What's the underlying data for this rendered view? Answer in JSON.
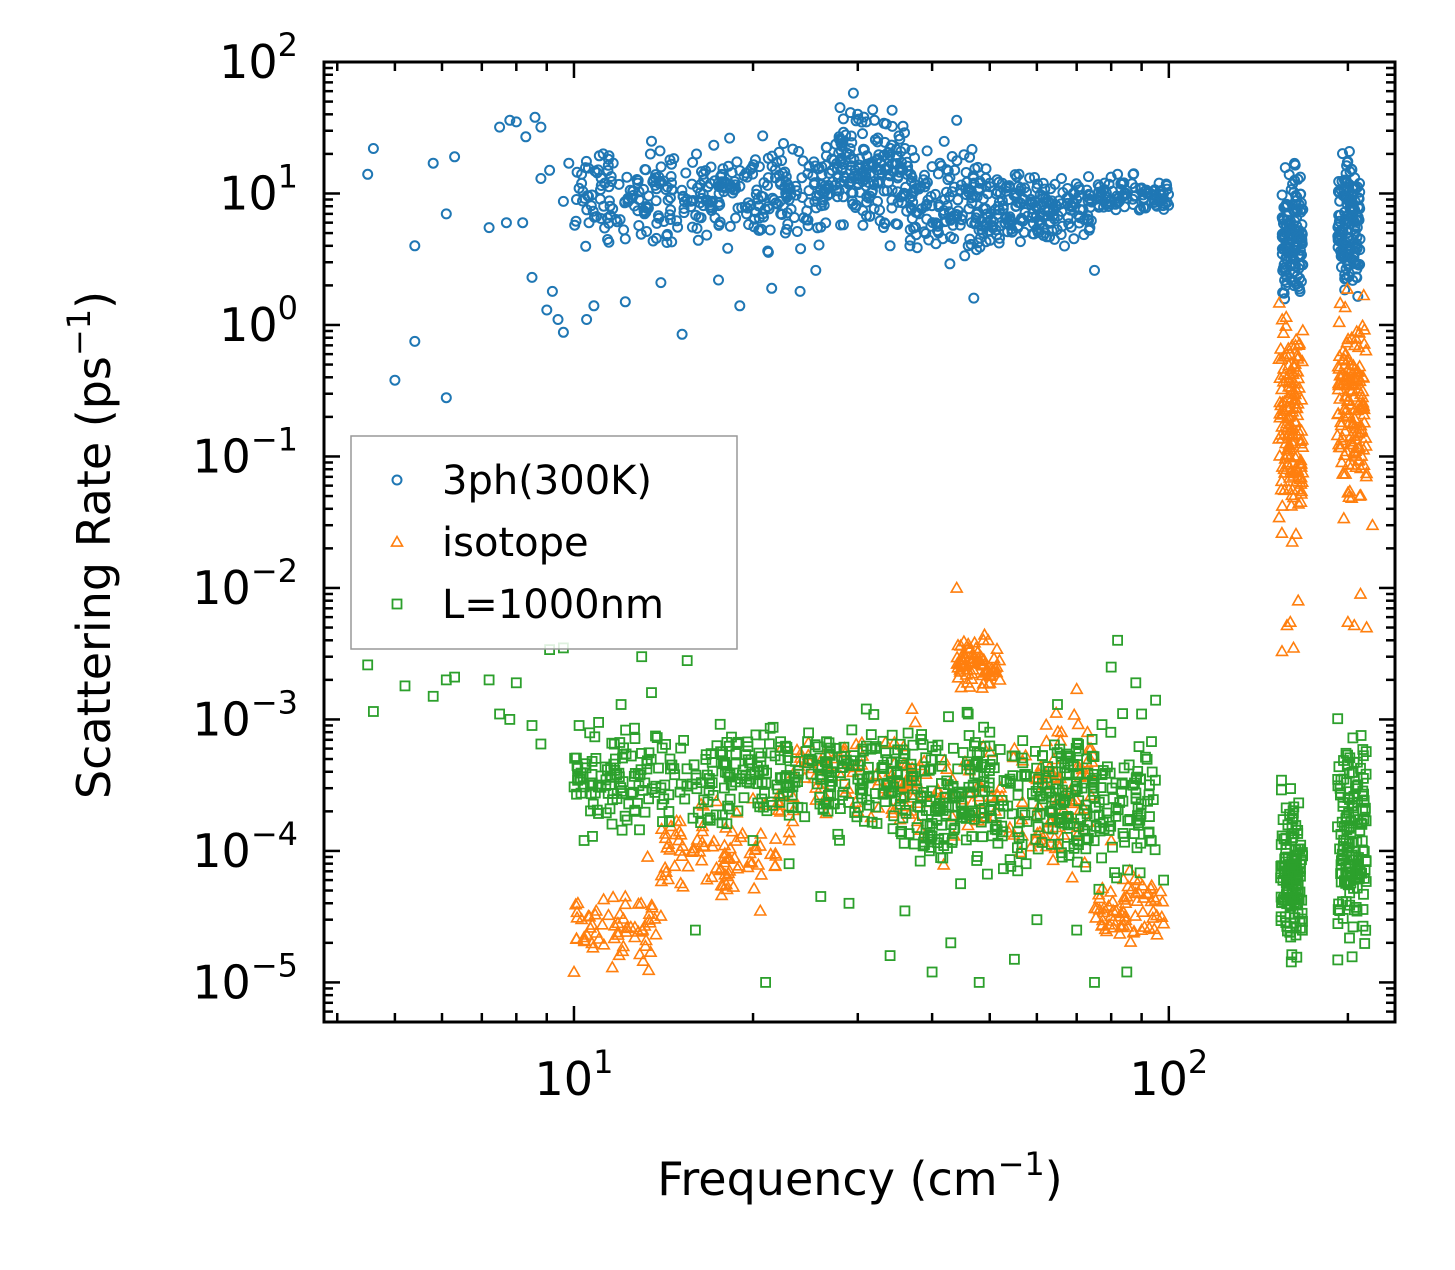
{
  "chart_data": {
    "type": "scatter",
    "title": "",
    "xlabel": "Frequency (cm⁻¹)",
    "xlabel_text": "Frequency (cm",
    "xlabel_sup": "−1",
    "xlabel_close": ")",
    "ylabel": "Scattering Rate (ps⁻¹)",
    "ylabel_text": "Scattering Rate (ps",
    "ylabel_sup": "−1",
    "ylabel_close": ")",
    "xscale": "log",
    "yscale": "log",
    "xlim": [
      3.8,
      240
    ],
    "ylim": [
      5e-06,
      100
    ],
    "legend_position": "center-left",
    "x_ticks": [
      {
        "value": 10,
        "base": "10",
        "exp": "1"
      },
      {
        "value": 100,
        "base": "10",
        "exp": "2"
      }
    ],
    "y_ticks": [
      {
        "value": 100,
        "base": "10",
        "exp": "2"
      },
      {
        "value": 10,
        "base": "10",
        "exp": "1"
      },
      {
        "value": 1,
        "base": "10",
        "exp": "0"
      },
      {
        "value": 0.1,
        "base": "10",
        "exp": "−1"
      },
      {
        "value": 0.01,
        "base": "10",
        "exp": "−2"
      },
      {
        "value": 0.001,
        "base": "10",
        "exp": "−3"
      },
      {
        "value": 0.0001,
        "base": "10",
        "exp": "−4"
      },
      {
        "value": 1e-05,
        "base": "10",
        "exp": "−5"
      }
    ],
    "series": [
      {
        "name": "3ph(300K)",
        "marker": "circle",
        "color": "#1f77b4",
        "points": [
          [
            4.5,
            14
          ],
          [
            4.6,
            22
          ],
          [
            5.0,
            0.38
          ],
          [
            5.4,
            4.0
          ],
          [
            5.4,
            0.75
          ],
          [
            5.8,
            17
          ],
          [
            6.1,
            7
          ],
          [
            6.1,
            0.28
          ],
          [
            6.3,
            19
          ],
          [
            7.2,
            5.5
          ],
          [
            7.5,
            32
          ],
          [
            7.7,
            6
          ],
          [
            7.8,
            36
          ],
          [
            8.0,
            35
          ],
          [
            8.2,
            6
          ],
          [
            8.3,
            27
          ],
          [
            8.5,
            2.3
          ],
          [
            8.6,
            38
          ],
          [
            8.8,
            13
          ],
          [
            8.8,
            32
          ],
          [
            9.0,
            1.3
          ],
          [
            9.1,
            15
          ],
          [
            9.2,
            1.8
          ],
          [
            9.4,
            1.1
          ],
          [
            9.6,
            8.7
          ],
          [
            9.6,
            0.88
          ],
          [
            9.8,
            17
          ],
          [
            10.1,
            9
          ],
          [
            10.3,
            14
          ],
          [
            10.5,
            1.1
          ],
          [
            10.6,
            6
          ],
          [
            10.8,
            1.4
          ],
          [
            11.2,
            20
          ],
          [
            11.5,
            8
          ],
          [
            12.2,
            1.5
          ],
          [
            12.8,
            12
          ],
          [
            13.5,
            25
          ],
          [
            14.0,
            2.1
          ],
          [
            14.5,
            18
          ],
          [
            15.2,
            0.85
          ],
          [
            15.5,
            9
          ],
          [
            16.5,
            14
          ],
          [
            17.5,
            2.2
          ],
          [
            18.0,
            11
          ],
          [
            19.0,
            1.4
          ],
          [
            19.5,
            7
          ],
          [
            20.5,
            16
          ],
          [
            21.5,
            1.9
          ],
          [
            22.5,
            24
          ],
          [
            24.0,
            1.8
          ],
          [
            25.5,
            2.6
          ],
          [
            27,
            10
          ],
          [
            28,
            45
          ],
          [
            29.5,
            58
          ],
          [
            31,
            35
          ],
          [
            32.5,
            12
          ],
          [
            34,
            4
          ],
          [
            36,
            22
          ],
          [
            38,
            7
          ],
          [
            40,
            16
          ],
          [
            42,
            9
          ],
          [
            44,
            36
          ],
          [
            46,
            4
          ],
          [
            47,
            1.6
          ],
          [
            50,
            12
          ],
          [
            53,
            6
          ],
          [
            56,
            14
          ],
          [
            60,
            11
          ],
          [
            62,
            5
          ],
          [
            66,
            13
          ],
          [
            70,
            9
          ],
          [
            75,
            2.6
          ],
          [
            78,
            12
          ],
          [
            82,
            14
          ],
          [
            90,
            11
          ],
          [
            98,
            10
          ]
        ],
        "clusters": [
          {
            "x": [
              10,
              16
            ],
            "y": [
              3,
              28
            ],
            "n": 140
          },
          {
            "x": [
              16,
              27
            ],
            "y": [
              3,
              35
            ],
            "n": 200
          },
          {
            "x": [
              27,
              36
            ],
            "y": [
              4,
              58
            ],
            "n": 180
          },
          {
            "x": [
              36,
              50
            ],
            "y": [
              2,
              30
            ],
            "n": 160
          },
          {
            "x": [
              50,
              75
            ],
            "y": [
              3,
              18
            ],
            "n": 180
          },
          {
            "x": [
              75,
              100
            ],
            "y": [
              6,
              15
            ],
            "n": 90
          },
          {
            "x": [
              155,
              168
            ],
            "y": [
              1,
              25
            ],
            "n": 140
          },
          {
            "x": [
              192,
              210
            ],
            "y": [
              1,
              33
            ],
            "n": 150
          }
        ]
      },
      {
        "name": "isotope",
        "marker": "triangle",
        "color": "#ff7f0e",
        "points": [
          [
            10.0,
            1.2e-05
          ],
          [
            10.4,
            2.2e-05
          ],
          [
            10.9,
            3.5e-05
          ],
          [
            11.6,
            1.3e-05
          ],
          [
            12.2,
            4.5e-05
          ],
          [
            13.3,
            9e-05
          ],
          [
            14.0,
            3.2e-05
          ],
          [
            15.0,
            0.00012
          ],
          [
            16.5,
            0.00022
          ],
          [
            18.0,
            0.00015
          ],
          [
            20.0,
            0.00025
          ],
          [
            23,
            0.00012
          ],
          [
            26,
            0.0003
          ],
          [
            30,
            0.0002
          ],
          [
            34,
            0.0004
          ],
          [
            37,
            0.0012
          ],
          [
            44,
            0.01
          ],
          [
            46,
            0.0035
          ],
          [
            49,
            0.0044
          ],
          [
            52,
            0.002
          ],
          [
            55,
            0.0006
          ],
          [
            60,
            0.00035
          ],
          [
            66,
            0.0008
          ],
          [
            70,
            0.0017
          ],
          [
            74,
            0.0006
          ],
          [
            80,
            0.00012
          ],
          [
            85,
            4.5e-05
          ],
          [
            90,
            2.5e-05
          ],
          [
            98,
            2.8e-05
          ],
          [
            155,
            0.0033
          ],
          [
            158,
            0.0052
          ],
          [
            160,
            0.0055
          ],
          [
            162,
            0.0035
          ],
          [
            165,
            0.008
          ],
          [
            200,
            0.0055
          ],
          [
            205,
            0.0052
          ],
          [
            210,
            0.009
          ],
          [
            215,
            0.005
          ],
          [
            220,
            0.03
          ]
        ],
        "clusters": [
          {
            "x": [
              10,
              14
            ],
            "y": [
              1e-05,
              7e-05
            ],
            "n": 60
          },
          {
            "x": [
              14,
              22
            ],
            "y": [
              3e-05,
              0.0003
            ],
            "n": 90
          },
          {
            "x": [
              22,
              38
            ],
            "y": [
              0.0001,
              0.0012
            ],
            "n": 90
          },
          {
            "x": [
              44,
              52
            ],
            "y": [
              0.0015,
              0.0045
            ],
            "n": 70
          },
          {
            "x": [
              36,
              60
            ],
            "y": [
              5e-05,
              0.0012
            ],
            "n": 60
          },
          {
            "x": [
              60,
              75
            ],
            "y": [
              5e-05,
              0.0018
            ],
            "n": 70
          },
          {
            "x": [
              75,
              98
            ],
            "y": [
              1.5e-05,
              0.0001
            ],
            "n": 70
          },
          {
            "x": [
              153,
              168
            ],
            "y": [
              0.012,
              2.5
            ],
            "n": 150
          },
          {
            "x": [
              192,
              215
            ],
            "y": [
              0.02,
              2.6
            ],
            "n": 150
          }
        ]
      },
      {
        "name": "L=1000nm",
        "marker": "square",
        "color": "#2ca02c",
        "points": [
          [
            4.5,
            0.0026
          ],
          [
            4.6,
            0.00115
          ],
          [
            5.2,
            0.0018
          ],
          [
            5.8,
            0.0015
          ],
          [
            6.1,
            0.002
          ],
          [
            6.3,
            0.0021
          ],
          [
            7.2,
            0.002
          ],
          [
            7.5,
            0.0011
          ],
          [
            7.8,
            0.001
          ],
          [
            8.0,
            0.0019
          ],
          [
            8.5,
            0.0009
          ],
          [
            8.8,
            0.00065
          ],
          [
            9.1,
            0.0034
          ],
          [
            9.6,
            0.0035
          ],
          [
            10.2,
            0.0009
          ],
          [
            10.4,
            0.00012
          ],
          [
            11.0,
            0.00095
          ],
          [
            12.0,
            0.0013
          ],
          [
            13.0,
            0.003
          ],
          [
            13.5,
            0.0016
          ],
          [
            15.5,
            0.0028
          ],
          [
            16.0,
            2.5e-05
          ],
          [
            17,
            0.00055
          ],
          [
            20,
            0.00012
          ],
          [
            21,
            1e-05
          ],
          [
            23,
            8e-05
          ],
          [
            26,
            4.5e-05
          ],
          [
            29,
            4e-05
          ],
          [
            31,
            0.0012
          ],
          [
            34,
            1.6e-05
          ],
          [
            36,
            3.5e-05
          ],
          [
            40,
            1.2e-05
          ],
          [
            43,
            2e-05
          ],
          [
            46,
            0.0011
          ],
          [
            48,
            1e-05
          ],
          [
            50,
            0.0008
          ],
          [
            55,
            1.5e-05
          ],
          [
            60,
            3e-05
          ],
          [
            65,
            0.0013
          ],
          [
            70,
            2.5e-05
          ],
          [
            75,
            1e-05
          ],
          [
            80,
            0.0025
          ],
          [
            82,
            0.004
          ],
          [
            85,
            1.2e-05
          ],
          [
            88,
            0.0019
          ],
          [
            90,
            0.0011
          ],
          [
            95,
            0.0014
          ],
          [
            98,
            6e-05
          ]
        ],
        "clusters": [
          {
            "x": [
              10,
              18
            ],
            "y": [
              0.0001,
              0.0012
            ],
            "n": 160
          },
          {
            "x": [
              18,
              35
            ],
            "y": [
              0.0001,
              0.0014
            ],
            "n": 220
          },
          {
            "x": [
              35,
              60
            ],
            "y": [
              4e-05,
              0.0015
            ],
            "n": 230
          },
          {
            "x": [
              60,
              95
            ],
            "y": [
              4e-05,
              0.0014
            ],
            "n": 200
          },
          {
            "x": [
              154,
              168
            ],
            "y": [
              1e-05,
              0.00045
            ],
            "n": 140
          },
          {
            "x": [
              192,
              215
            ],
            "y": [
              1e-05,
              0.0014
            ],
            "n": 150
          }
        ]
      }
    ]
  }
}
